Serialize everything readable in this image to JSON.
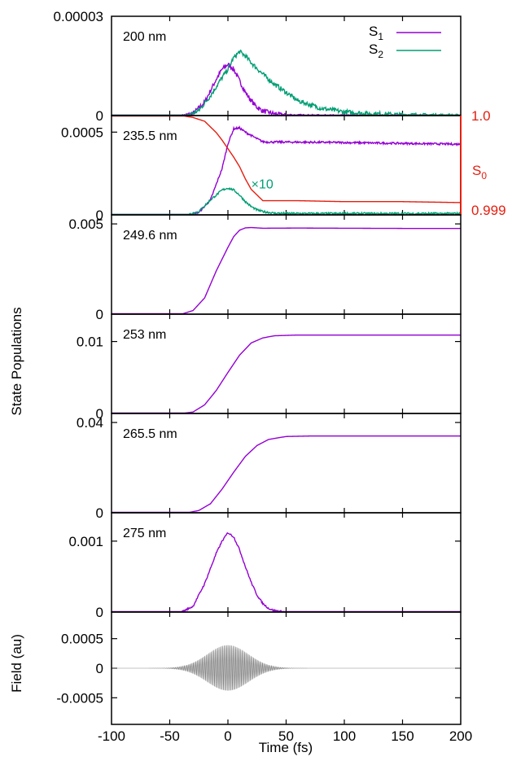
{
  "chart_data": {
    "type": "line",
    "xlabel": "Time (fs)",
    "ylabel": "State Populations",
    "xlim": [
      -100,
      200
    ],
    "x_ticks": [
      "-100",
      "-50",
      "0",
      "50",
      "100",
      "150",
      "200"
    ],
    "colors": {
      "S1": "#9400D3",
      "S2": "#009E73",
      "S0": "#E51E10",
      "field": "#888888"
    },
    "legend": {
      "placement": "top-right",
      "entries": [
        {
          "label": "S",
          "sub": "1",
          "series": "S1"
        },
        {
          "label": "S",
          "sub": "2",
          "series": "S2"
        }
      ]
    },
    "panels": [
      {
        "label": "200 nm",
        "ylim": [
          0,
          3e-05
        ],
        "y_ticks": [
          {
            "value": 0,
            "label": "0"
          },
          {
            "value": 3e-05,
            "label": "0.00003"
          }
        ],
        "series": [
          {
            "key": "S1",
            "x": [
              -100,
              -40,
              -30,
              -20,
              -10,
              -5,
              0,
              5,
              10,
              15,
              20,
              25,
              30,
              40,
              50,
              60,
              80,
              100,
              150,
              200
            ],
            "y": [
              0,
              0,
              6e-07,
              4e-06,
              1.1e-05,
              1.4e-05,
              1.55e-05,
              1.4e-05,
              1.05e-05,
              7e-06,
              4.5e-06,
              2.5e-06,
              1.4e-06,
              5e-07,
              2e-07,
              1e-07,
              5e-08,
              3e-08,
              2e-08,
              1e-08
            ],
            "noise": 7e-07
          },
          {
            "key": "S2",
            "x": [
              -100,
              -35,
              -25,
              -15,
              -5,
              0,
              5,
              10,
              15,
              20,
              30,
              40,
              50,
              60,
              80,
              100,
              120,
              150,
              200
            ],
            "y": [
              0,
              0,
              1.5e-06,
              6e-06,
              1.15e-05,
              1.4e-05,
              1.75e-05,
              1.93e-05,
              1.8e-05,
              1.6e-05,
              1.25e-05,
              9.5e-06,
              7e-06,
              4.5e-06,
              2.2e-06,
              1.1e-06,
              6e-07,
              3e-07,
              1e-07
            ],
            "noise": 7e-07
          }
        ]
      },
      {
        "label": "235.5 nm",
        "ylim": [
          0,
          0.0006
        ],
        "y_ticks": [
          {
            "value": 0,
            "label": "0"
          },
          {
            "value": 0.0005,
            "label": "0.0005"
          }
        ],
        "annotation": "×10",
        "y2_axis": {
          "label": "S",
          "sub": "0",
          "ylim": [
            0.99895,
            1.0
          ],
          "ticks": [
            {
              "value": 1.0,
              "label": "1.0"
            },
            {
              "value": 0.999,
              "label": "0.999"
            }
          ]
        },
        "series": [
          {
            "key": "S1",
            "x": [
              -100,
              -35,
              -25,
              -15,
              -5,
              0,
              5,
              10,
              15,
              20,
              25,
              30,
              35,
              50,
              100,
              150,
              200
            ],
            "y": [
              0,
              0,
              1.5e-05,
              9e-05,
              0.00028,
              0.00043,
              0.00052,
              0.000525,
              0.0005,
              0.00048,
              0.00046,
              0.000442,
              0.00044,
              0.00044,
              0.000437,
              0.000432,
              0.000427
            ],
            "noise": 6e-06
          },
          {
            "key": "S2",
            "x": [
              -100,
              -35,
              -25,
              -15,
              -5,
              0,
              5,
              10,
              15,
              20,
              25,
              30,
              40,
              60,
              100,
              200
            ],
            "y": [
              0,
              0,
              2e-05,
              9e-05,
              0.00015,
              0.000162,
              0.00015,
              0.00012,
              8e-05,
              5e-05,
              3e-05,
              2e-05,
              1e-05,
              8e-06,
              8e-06,
              8e-06
            ],
            "noise": 6e-06,
            "axis": "left"
          },
          {
            "key": "S0",
            "x": [
              -100,
              -40,
              -30,
              -20,
              -10,
              -5,
              0,
              5,
              10,
              15,
              20,
              30,
              40,
              60,
              100,
              150,
              200
            ],
            "y": [
              1.0,
              1.0,
              0.99998,
              0.99994,
              0.99982,
              0.99974,
              0.99965,
              0.99956,
              0.99946,
              0.99933,
              0.99922,
              0.9991,
              0.9991,
              0.9991,
              0.99909,
              0.99909,
              0.99908
            ],
            "noise": 0,
            "axis": "right"
          }
        ]
      },
      {
        "label": "249.6 nm",
        "ylim": [
          0,
          0.0055
        ],
        "y_ticks": [
          {
            "value": 0,
            "label": "0"
          },
          {
            "value": 0.005,
            "label": "0.005"
          }
        ],
        "series": [
          {
            "key": "S1",
            "x": [
              -100,
              -40,
              -30,
              -20,
              -10,
              0,
              5,
              10,
              15,
              20,
              30,
              60,
              100,
              150,
              200
            ],
            "y": [
              0,
              0,
              0.0002,
              0.0009,
              0.0024,
              0.0037,
              0.0043,
              0.00465,
              0.00478,
              0.0048,
              0.00476,
              0.00477,
              0.00476,
              0.00475,
              0.00475
            ],
            "noise": 0
          }
        ]
      },
      {
        "label": "253 nm",
        "ylim": [
          0,
          0.0138
        ],
        "y_ticks": [
          {
            "value": 0,
            "label": "0"
          },
          {
            "value": 0.01,
            "label": "0.01"
          }
        ],
        "series": [
          {
            "key": "S1",
            "x": [
              -100,
              -40,
              -30,
              -20,
              -10,
              0,
              10,
              20,
              30,
              40,
              60,
              100,
              150,
              200
            ],
            "y": [
              0,
              0,
              0.0002,
              0.0012,
              0.0032,
              0.0057,
              0.0081,
              0.0098,
              0.0105,
              0.0108,
              0.0109,
              0.0109,
              0.0109,
              0.0109
            ],
            "noise": 0
          }
        ]
      },
      {
        "label": "265.5 nm",
        "ylim": [
          0,
          0.044
        ],
        "y_ticks": [
          {
            "value": 0,
            "label": "0"
          },
          {
            "value": 0.04,
            "label": "0.04"
          }
        ],
        "series": [
          {
            "key": "S1",
            "x": [
              -100,
              -35,
              -25,
              -15,
              -5,
              5,
              15,
              25,
              35,
              50,
              70,
              100,
              150,
              200
            ],
            "y": [
              0,
              0,
              0.001,
              0.004,
              0.0105,
              0.018,
              0.025,
              0.0298,
              0.0325,
              0.0338,
              0.034,
              0.034,
              0.034,
              0.034
            ],
            "noise": 0
          }
        ]
      },
      {
        "label": "275 nm",
        "ylim": [
          0,
          0.0014
        ],
        "y_ticks": [
          {
            "value": 0,
            "label": "0"
          },
          {
            "value": 0.001,
            "label": "0.001"
          }
        ],
        "series": [
          {
            "key": "S1",
            "x": [
              -100,
              -40,
              -30,
              -20,
              -10,
              -5,
              0,
              5,
              10,
              15,
              20,
              25,
              30,
              35,
              40,
              50,
              200
            ],
            "y": [
              0,
              0,
              8e-05,
              0.0004,
              0.00083,
              0.001,
              0.00112,
              0.00106,
              0.00088,
              0.00064,
              0.00042,
              0.00024,
              0.00012,
              5e-05,
              2e-05,
              0,
              0
            ],
            "noise": 1.2e-05
          }
        ]
      },
      {
        "label": "",
        "ylabel": "Field (au)",
        "ylim": [
          -0.00095,
          0.00095
        ],
        "y_ticks": [
          {
            "value": 0.0005,
            "label": "0.0005"
          },
          {
            "value": 0,
            "label": "0"
          },
          {
            "value": -0.0005,
            "label": "-0.0005"
          }
        ],
        "field": {
          "amplitude": 0.00039,
          "center_fs": 0,
          "width_fs": 25,
          "period_fs": 1.1
        }
      }
    ]
  }
}
